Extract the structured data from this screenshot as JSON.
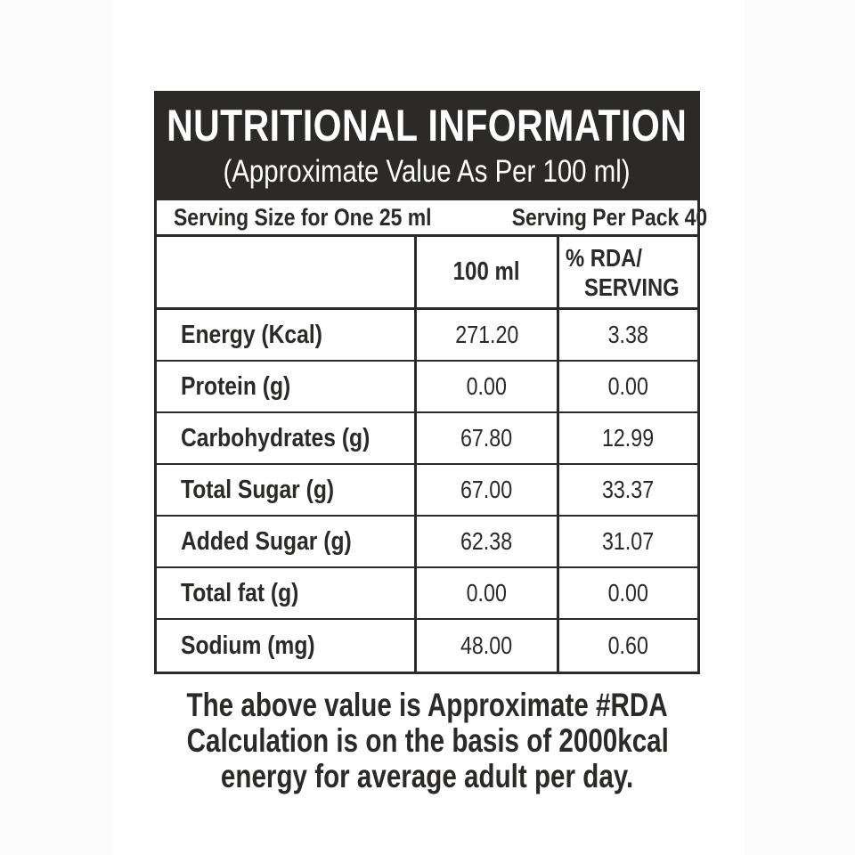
{
  "label": {
    "title": "NUTRITIONAL INFORMATION",
    "subtitle": "(Approximate Value As Per 100 ml)",
    "serving": {
      "size": "Serving Size for One 25 ml",
      "per_pack": "Serving Per Pack 40"
    },
    "columns": {
      "nutrient_header": "",
      "per_100ml": "100 ml",
      "rda_line1": "% RDA/",
      "rda_line2": "SERVING"
    },
    "rows": [
      {
        "nutrient": "Energy (Kcal)",
        "per_100ml": "271.20",
        "rda_per_serving": "3.38"
      },
      {
        "nutrient": "Protein (g)",
        "per_100ml": "0.00",
        "rda_per_serving": "0.00"
      },
      {
        "nutrient": "Carbohydrates (g)",
        "per_100ml": "67.80",
        "rda_per_serving": "12.99"
      },
      {
        "nutrient": "Total Sugar (g)",
        "per_100ml": "67.00",
        "rda_per_serving": "33.37"
      },
      {
        "nutrient": "Added Sugar (g)",
        "per_100ml": "62.38",
        "rda_per_serving": "31.07"
      },
      {
        "nutrient": "Total fat (g)",
        "per_100ml": "0.00",
        "rda_per_serving": "0.00"
      },
      {
        "nutrient": "Sodium (mg)",
        "per_100ml": "48.00",
        "rda_per_serving": "0.60"
      }
    ],
    "footer_lines": [
      "The above value is Approximate #RDA",
      "Calculation is on the basis of 2000kcal",
      "energy for average adult per day."
    ],
    "colors": {
      "ink": "#2b2a28",
      "header_bg": "#2b2a28",
      "header_text": "#ffffff",
      "page_bg": "#ffffff"
    }
  }
}
